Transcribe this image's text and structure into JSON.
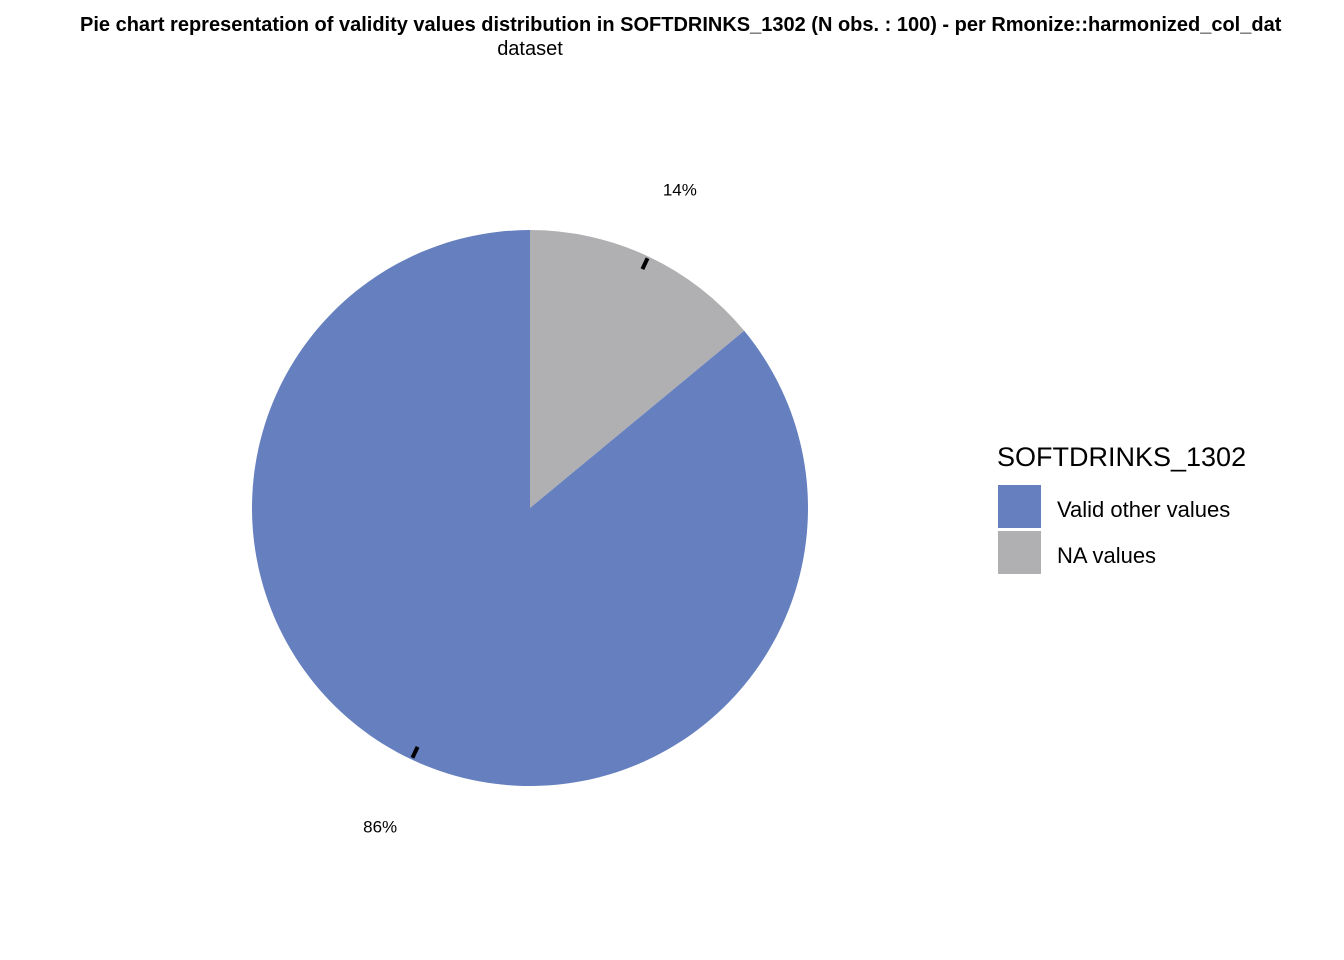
{
  "chart_data": {
    "type": "pie",
    "title": "Pie chart representation of validity values distribution in SOFTDRINKS_1302 (N obs. : 100) - per Rmonize::harmonized_col_dat",
    "subtitle": "dataset",
    "categories": [
      "Valid other values",
      "NA values"
    ],
    "values": [
      86,
      14
    ],
    "labels": [
      "86%",
      "14%"
    ],
    "colors": [
      "#6680bf",
      "#b0b0b2"
    ],
    "legend": {
      "title": "SOFTDRINKS_1302",
      "placement": "right",
      "order": [
        {
          "label": "Valid other values",
          "color": "#6680bf"
        },
        {
          "label": "NA values",
          "color": "#b0b0b2"
        }
      ]
    }
  }
}
